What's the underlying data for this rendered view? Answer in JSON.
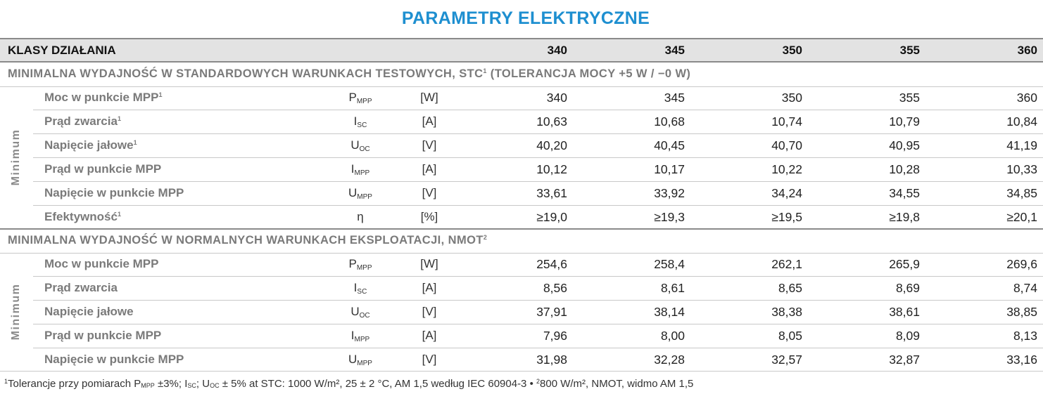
{
  "title": "PARAMETRY ELEKTRYCZNE",
  "header": {
    "label": "KLASY DZIAŁANIA",
    "classes": [
      "340",
      "345",
      "350",
      "355",
      "360"
    ]
  },
  "sections": [
    {
      "title": "MINIMALNA WYDAJNOŚĆ W STANDARDOWYCH WARUNKACH TESTOWYCH, STC",
      "title_sup": "1",
      "title_suffix": " (TOLERANCJA MOCY +5 W / −0 W)",
      "side_label": "Minimum",
      "rows": [
        {
          "name": "Moc w punkcie MPP",
          "sup": "1",
          "sym": "P",
          "sub": "MPP",
          "unit": "[W]",
          "values": [
            "340",
            "345",
            "350",
            "355",
            "360"
          ]
        },
        {
          "name": "Prąd zwarcia",
          "sup": "1",
          "sym": "I",
          "sub": "SC",
          "unit": "[A]",
          "values": [
            "10,63",
            "10,68",
            "10,74",
            "10,79",
            "10,84"
          ]
        },
        {
          "name": "Napięcie jałowe",
          "sup": "1",
          "sym": "U",
          "sub": "OC",
          "unit": "[V]",
          "values": [
            "40,20",
            "40,45",
            "40,70",
            "40,95",
            "41,19"
          ]
        },
        {
          "name": "Prąd w punkcie MPP",
          "sup": "",
          "sym": "I",
          "sub": "MPP",
          "unit": "[A]",
          "values": [
            "10,12",
            "10,17",
            "10,22",
            "10,28",
            "10,33"
          ]
        },
        {
          "name": "Napięcie w punkcie MPP",
          "sup": "",
          "sym": "U",
          "sub": "MPP",
          "unit": "[V]",
          "values": [
            "33,61",
            "33,92",
            "34,24",
            "34,55",
            "34,85"
          ]
        },
        {
          "name": "Efektywność",
          "sup": "1",
          "sym": "η",
          "sub": "",
          "unit": "[%]",
          "values": [
            "≥19,0",
            "≥19,3",
            "≥19,5",
            "≥19,8",
            "≥20,1"
          ]
        }
      ]
    },
    {
      "title": "MINIMALNA WYDAJNOŚĆ W NORMALNYCH WARUNKACH EKSPLOATACJI, NMOT",
      "title_sup": "2",
      "title_suffix": "",
      "side_label": "Minimum",
      "rows": [
        {
          "name": "Moc w punkcie MPP",
          "sup": "",
          "sym": "P",
          "sub": "MPP",
          "unit": "[W]",
          "values": [
            "254,6",
            "258,4",
            "262,1",
            "265,9",
            "269,6"
          ]
        },
        {
          "name": "Prąd zwarcia",
          "sup": "",
          "sym": "I",
          "sub": "SC",
          "unit": "[A]",
          "values": [
            "8,56",
            "8,61",
            "8,65",
            "8,69",
            "8,74"
          ]
        },
        {
          "name": "Napięcie jałowe",
          "sup": "",
          "sym": "U",
          "sub": "OC",
          "unit": "[V]",
          "values": [
            "37,91",
            "38,14",
            "38,38",
            "38,61",
            "38,85"
          ]
        },
        {
          "name": "Prąd w punkcie MPP",
          "sup": "",
          "sym": "I",
          "sub": "MPP",
          "unit": "[A]",
          "values": [
            "7,96",
            "8,00",
            "8,05",
            "8,09",
            "8,13"
          ]
        },
        {
          "name": "Napięcie w punkcie MPP",
          "sup": "",
          "sym": "U",
          "sub": "MPP",
          "unit": "[V]",
          "values": [
            "31,98",
            "32,28",
            "32,57",
            "32,87",
            "33,16"
          ]
        }
      ]
    }
  ],
  "footnote": {
    "p1": "Tolerancje przy pomiarach P",
    "p1_sub": "MPP",
    "p2": " ±3%; I",
    "p2_sub": "SC",
    "p3": "; U",
    "p3_sub": "OC",
    "p4": " ± 5% at STC: 1000 W/m², 25 ± 2 °C, AM 1,5 według IEC 60904-3 • ",
    "p5": "800 W/m², NMOT, widmo AM 1,5",
    "sup1": "1",
    "sup2": "2"
  }
}
